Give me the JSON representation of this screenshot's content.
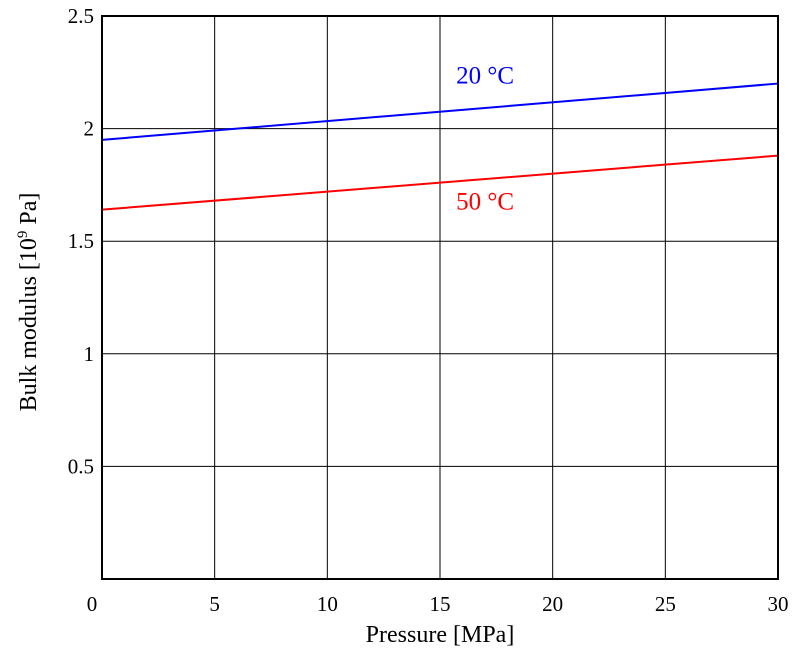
{
  "chart_data": {
    "type": "line",
    "xlabel": "Pressure [MPa]",
    "ylabel": {
      "prefix": "Bulk modulus [10",
      "exponent": "9",
      "suffix": " Pa]"
    },
    "xlim": [
      0,
      30
    ],
    "ylim": [
      0,
      2.5
    ],
    "x_ticks": [
      0,
      5,
      10,
      15,
      20,
      25,
      30
    ],
    "x_tick_labels": [
      "0",
      "5",
      "10",
      "15",
      "20",
      "25",
      "30"
    ],
    "y_ticks": [
      0.5,
      1,
      1.5,
      2,
      2.5
    ],
    "y_tick_labels": [
      "0.5",
      "1",
      "1.5",
      "2",
      "2.5"
    ],
    "grid": true,
    "series": [
      {
        "label": "20 °C",
        "color": "#0000ff",
        "x": [
          0,
          30
        ],
        "y": [
          1.95,
          2.2
        ],
        "label_at": [
          17,
          2.2
        ]
      },
      {
        "label": "50 °C",
        "color": "#ff0000",
        "x": [
          0,
          30
        ],
        "y": [
          1.64,
          1.88
        ],
        "label_at": [
          17,
          1.64
        ]
      }
    ]
  }
}
